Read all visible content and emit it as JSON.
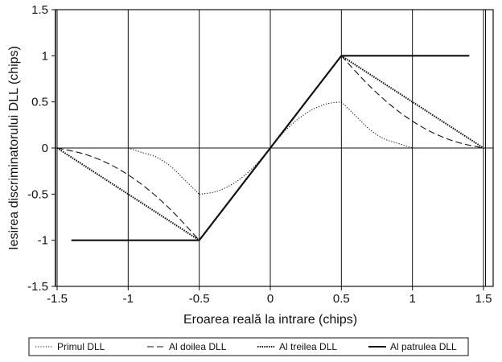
{
  "chart_data": {
    "type": "line",
    "title": "",
    "xlabel": "Eroarea reală la intrare (chips)",
    "ylabel": "Iesirea discriminatorului DLL (chips)",
    "xlim": [
      -1.5,
      1.5
    ],
    "ylim": [
      -1.5,
      1.5
    ],
    "x_ticks": [
      -1.5,
      -1,
      -0.5,
      0,
      0.5,
      1,
      1.5
    ],
    "x_tick_labels": [
      "-1.5",
      "-1",
      "-0.5",
      "0",
      "0.5",
      "1",
      "1.5"
    ],
    "y_ticks": [
      1.5,
      1,
      0.5,
      0,
      -0.5,
      -1,
      -1.5
    ],
    "y_tick_labels": [
      "1.5",
      "1",
      "0.5",
      "0",
      "-0.5",
      "-1",
      "-1.5"
    ],
    "grid": "vertical",
    "legend_position": "bottom",
    "series": [
      {
        "name": "Primul DLL",
        "style": "dotted",
        "points": [
          [
            -1,
            0
          ],
          [
            -0.9,
            -0.05
          ],
          [
            -0.8,
            -0.1
          ],
          [
            -0.7,
            -0.2
          ],
          [
            -0.6,
            -0.35
          ],
          [
            -0.5,
            -0.5
          ],
          [
            -0.4,
            -0.48
          ],
          [
            -0.3,
            -0.42
          ],
          [
            -0.2,
            -0.32
          ],
          [
            -0.1,
            -0.18
          ],
          [
            0,
            0
          ],
          [
            0.1,
            0.18
          ],
          [
            0.2,
            0.32
          ],
          [
            0.3,
            0.42
          ],
          [
            0.4,
            0.48
          ],
          [
            0.5,
            0.5
          ],
          [
            0.6,
            0.35
          ],
          [
            0.7,
            0.2
          ],
          [
            0.8,
            0.1
          ],
          [
            0.9,
            0.05
          ],
          [
            1,
            0
          ]
        ]
      },
      {
        "name": "Al doilea DLL",
        "style": "dashed",
        "points": [
          [
            -1.5,
            0
          ],
          [
            -1.3,
            -0.07
          ],
          [
            -1.1,
            -0.2
          ],
          [
            -0.9,
            -0.4
          ],
          [
            -0.7,
            -0.67
          ],
          [
            -0.5,
            -1
          ],
          [
            0,
            0
          ],
          [
            0.5,
            1
          ],
          [
            0.7,
            0.67
          ],
          [
            0.9,
            0.4
          ],
          [
            1.1,
            0.2
          ],
          [
            1.3,
            0.07
          ],
          [
            1.5,
            0
          ]
        ]
      },
      {
        "name": "Al treilea DLL",
        "style": "dense-dotted",
        "points": [
          [
            -1.5,
            0
          ],
          [
            -0.5,
            -1
          ],
          [
            0,
            0
          ],
          [
            0.5,
            1
          ],
          [
            1.5,
            0
          ]
        ]
      },
      {
        "name": "Al patrulea DLL",
        "style": "solid",
        "points": [
          [
            -1.4,
            -1
          ],
          [
            -0.5,
            -1
          ],
          [
            0.5,
            1
          ],
          [
            1.4,
            1
          ]
        ]
      }
    ]
  }
}
